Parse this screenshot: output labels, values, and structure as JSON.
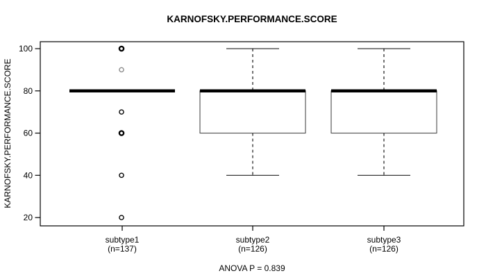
{
  "chart_data": {
    "type": "boxplot",
    "title": "KARNOFSKY.PERFORMANCE.SCORE",
    "ylabel": "KARNOFSKY.PERFORMANCE.SCORE",
    "footer": "ANOVA P = 0.839",
    "ylim": [
      20,
      100
    ],
    "yticks": [
      100,
      80,
      60,
      40,
      20
    ],
    "grid": false,
    "whisker_style": "dashed",
    "colors": {
      "background": "#ffffff",
      "frame": "#000000",
      "box_border": "#4a4a4a",
      "median": "#000000",
      "outlier_normal": "#000000",
      "outlier_light": "#8a8a8a"
    },
    "groups": [
      {
        "label": "subtype1",
        "sublabel": "(n=137)",
        "n": 137,
        "q1": 80,
        "median": 80,
        "q3": 80,
        "whisker_low": 80,
        "whisker_high": 80,
        "outliers": [
          {
            "value": 100,
            "emphasis": "bold"
          },
          {
            "value": 90,
            "emphasis": "light"
          },
          {
            "value": 70,
            "emphasis": "normal"
          },
          {
            "value": 60,
            "emphasis": "bold"
          },
          {
            "value": 40,
            "emphasis": "normal"
          },
          {
            "value": 20,
            "emphasis": "normal"
          }
        ]
      },
      {
        "label": "subtype2",
        "sublabel": "(n=126)",
        "n": 126,
        "q1": 60,
        "median": 80,
        "q3": 80,
        "whisker_low": 40,
        "whisker_high": 100,
        "outliers": []
      },
      {
        "label": "subtype3",
        "sublabel": "(n=126)",
        "n": 126,
        "q1": 60,
        "median": 80,
        "q3": 80,
        "whisker_low": 40,
        "whisker_high": 100,
        "outliers": []
      }
    ]
  }
}
